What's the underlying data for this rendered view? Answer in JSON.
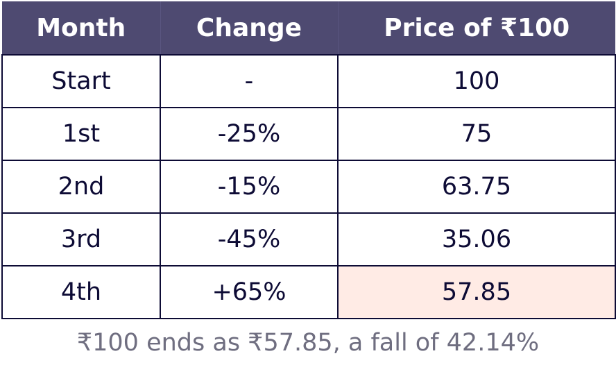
{
  "colors": {
    "header_bg": "#4e4a71",
    "header_text": "#ffffff",
    "cell_text": "#0d0b35",
    "border": "#0d0b35",
    "highlight_bg": "#ffebe5",
    "caption_text": "#6f6e80"
  },
  "table": {
    "headers": [
      "Month",
      "Change",
      "Price of ₹100"
    ],
    "rows": [
      {
        "month": "Start",
        "change": "-",
        "price": "100"
      },
      {
        "month": "1st",
        "change": "-25%",
        "price": "75"
      },
      {
        "month": "2nd",
        "change": "-15%",
        "price": "63.75"
      },
      {
        "month": "3rd",
        "change": "-45%",
        "price": "35.06"
      },
      {
        "month": "4th",
        "change": "+65%",
        "price": "57.85"
      }
    ]
  },
  "caption": "₹100 ends as ₹57.85, a fall of 42.14%"
}
